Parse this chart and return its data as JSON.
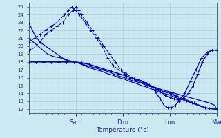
{
  "title": "",
  "xlabel": "Température (°c)",
  "ylabel": "",
  "bg_color": "#cce8f0",
  "plot_bg_color": "#cce8f0",
  "grid_major_color": "#aaccdd",
  "grid_minor_color": "#bbdde8",
  "plot_color": "#0000cc",
  "ylim": [
    11.5,
    25.5
  ],
  "yticks": [
    12,
    13,
    14,
    15,
    16,
    17,
    18,
    19,
    20,
    21,
    22,
    23,
    24,
    25
  ],
  "xtick_labels": [
    "Sam",
    "Dim",
    "Lun",
    "Mar"
  ],
  "num_days": 4,
  "series": [
    {
      "x_norm": [
        0.0,
        0.03,
        0.06,
        0.09,
        0.12,
        0.15,
        0.18,
        0.21,
        0.24,
        0.27,
        0.3,
        0.33,
        0.36,
        0.39,
        0.42,
        0.45,
        0.48,
        0.51,
        0.54,
        0.57,
        0.6,
        0.63,
        0.66,
        0.69,
        0.72,
        0.75,
        0.78,
        0.81,
        0.84,
        0.87,
        0.9,
        0.93,
        0.96,
        0.99,
        1.0
      ],
      "y": [
        23.0,
        21.5,
        20.5,
        20.0,
        19.5,
        19.0,
        18.5,
        18.2,
        18.0,
        17.8,
        17.5,
        17.2,
        17.0,
        16.8,
        16.5,
        16.3,
        16.0,
        15.8,
        15.5,
        15.3,
        15.0,
        14.8,
        14.5,
        14.2,
        14.0,
        13.8,
        13.5,
        13.3,
        13.0,
        12.8,
        12.5,
        12.3,
        12.1,
        12.0,
        12.0
      ],
      "style": "-",
      "marker": "None",
      "lw": 0.9
    },
    {
      "x_norm": [
        0.0,
        0.025,
        0.05,
        0.075,
        0.1,
        0.13,
        0.17,
        0.2,
        0.23,
        0.26,
        0.28,
        0.3,
        0.33,
        0.36,
        0.39,
        0.42,
        0.45,
        0.48,
        0.51,
        0.54,
        0.57,
        0.6,
        0.63,
        0.66,
        0.69,
        0.72,
        0.75,
        0.78,
        0.81,
        0.84,
        0.87,
        0.9,
        0.93,
        0.96,
        0.99,
        1.0
      ],
      "y": [
        21.0,
        20.5,
        20.0,
        19.5,
        19.0,
        18.7,
        18.5,
        18.2,
        18.0,
        17.9,
        17.8,
        17.6,
        17.4,
        17.2,
        17.0,
        16.8,
        16.5,
        16.2,
        16.0,
        15.7,
        15.5,
        15.3,
        15.0,
        14.8,
        14.6,
        14.4,
        14.2,
        14.0,
        13.8,
        13.6,
        13.4,
        13.2,
        13.0,
        12.8,
        12.5,
        12.0
      ],
      "style": "-",
      "marker": "None",
      "lw": 0.9
    },
    {
      "x_norm": [
        0.0,
        0.03,
        0.06,
        0.09,
        0.12,
        0.15,
        0.18,
        0.21,
        0.235,
        0.25,
        0.265,
        0.28,
        0.31,
        0.34,
        0.37,
        0.4,
        0.43,
        0.46,
        0.49,
        0.52,
        0.55,
        0.58,
        0.61,
        0.64,
        0.67,
        0.7,
        0.73,
        0.76,
        0.79,
        0.82,
        0.85,
        0.88,
        0.91,
        0.94,
        0.97,
        1.0
      ],
      "y": [
        19.5,
        19.8,
        20.5,
        21.5,
        22.0,
        22.5,
        23.0,
        24.0,
        24.5,
        25.0,
        24.5,
        24.0,
        23.0,
        22.0,
        21.0,
        20.0,
        19.0,
        18.0,
        17.0,
        16.5,
        16.0,
        15.7,
        15.4,
        15.1,
        14.8,
        14.5,
        14.2,
        14.0,
        13.7,
        13.4,
        13.1,
        12.8,
        12.5,
        12.2,
        12.1,
        12.0
      ],
      "style": "--",
      "marker": "+",
      "ms": 3,
      "lw": 0.8
    },
    {
      "x_norm": [
        0.0,
        0.03,
        0.06,
        0.09,
        0.12,
        0.15,
        0.17,
        0.19,
        0.21,
        0.23,
        0.25,
        0.27,
        0.3,
        0.33,
        0.36,
        0.39,
        0.42,
        0.45,
        0.48,
        0.51,
        0.54,
        0.57,
        0.6,
        0.63,
        0.66,
        0.69,
        0.72,
        0.75,
        0.78,
        0.81,
        0.84,
        0.87,
        0.9,
        0.93,
        0.96,
        0.99,
        1.0
      ],
      "y": [
        20.5,
        21.0,
        21.5,
        22.0,
        22.5,
        23.0,
        23.5,
        24.0,
        24.5,
        25.0,
        24.5,
        24.0,
        23.0,
        22.0,
        21.0,
        20.0,
        18.5,
        17.5,
        17.0,
        16.5,
        16.0,
        15.7,
        15.4,
        15.1,
        14.8,
        14.5,
        14.2,
        14.0,
        13.7,
        13.4,
        13.1,
        12.8,
        12.5,
        12.2,
        12.1,
        12.0,
        12.0
      ],
      "style": "--",
      "marker": "+",
      "ms": 3,
      "lw": 0.8
    },
    {
      "x_norm": [
        0.0,
        0.04,
        0.08,
        0.12,
        0.16,
        0.2,
        0.24,
        0.28,
        0.32,
        0.36,
        0.4,
        0.44,
        0.48,
        0.52,
        0.56,
        0.6,
        0.625,
        0.65,
        0.675,
        0.7,
        0.725,
        0.75,
        0.775,
        0.8,
        0.825,
        0.85,
        0.875,
        0.9,
        0.925,
        0.95,
        0.975,
        1.0
      ],
      "y": [
        18.0,
        18.0,
        18.0,
        18.0,
        18.0,
        18.0,
        18.0,
        17.9,
        17.7,
        17.4,
        17.1,
        16.8,
        16.5,
        16.2,
        15.9,
        15.6,
        15.3,
        15.0,
        14.6,
        14.2,
        13.8,
        13.5,
        13.3,
        13.2,
        13.4,
        14.0,
        15.0,
        16.5,
        18.0,
        19.0,
        19.5,
        19.5
      ],
      "style": "-",
      "marker": "+",
      "ms": 3,
      "lw": 0.9
    },
    {
      "x_norm": [
        0.0,
        0.04,
        0.08,
        0.12,
        0.16,
        0.2,
        0.24,
        0.28,
        0.32,
        0.36,
        0.4,
        0.44,
        0.48,
        0.52,
        0.56,
        0.6,
        0.625,
        0.65,
        0.675,
        0.7,
        0.72,
        0.74,
        0.76,
        0.78,
        0.8,
        0.83,
        0.86,
        0.89,
        0.92,
        0.95,
        0.975,
        1.0
      ],
      "y": [
        18.0,
        18.0,
        18.0,
        18.0,
        18.0,
        18.0,
        18.0,
        17.9,
        17.7,
        17.4,
        17.1,
        16.8,
        16.5,
        16.2,
        15.9,
        15.6,
        15.3,
        15.0,
        14.2,
        13.3,
        12.5,
        12.2,
        12.2,
        12.5,
        13.0,
        14.0,
        15.5,
        17.0,
        18.5,
        19.2,
        19.5,
        19.5
      ],
      "style": "-",
      "marker": "+",
      "ms": 3,
      "lw": 0.9
    }
  ]
}
